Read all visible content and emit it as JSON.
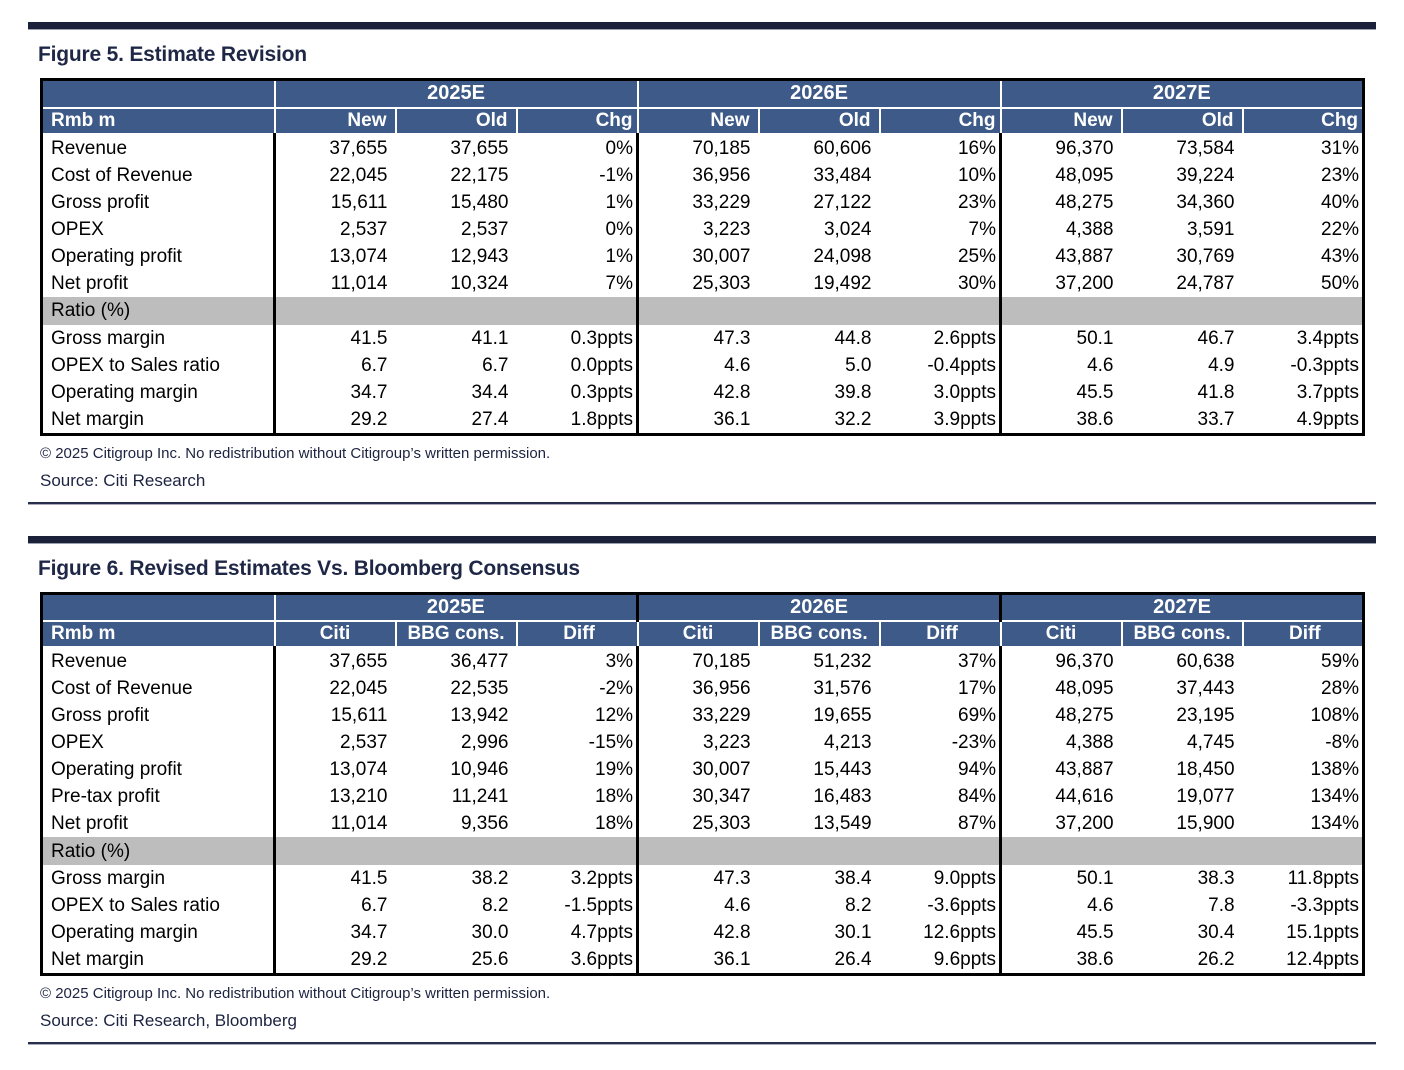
{
  "colors": {
    "header_bg": "#3d5a88",
    "band_gray": "#bdbdbd",
    "accent_navy": "#1f2746",
    "divider_bar": "#1b2139",
    "table_border": "#000000"
  },
  "figure5": {
    "title": "Figure 5. Estimate Revision",
    "row_header": "Rmb m",
    "groups": [
      "2025E",
      "2026E",
      "2027E"
    ],
    "sub_headers": [
      "New",
      "Old",
      "Chg"
    ],
    "rows": [
      {
        "label": "Revenue",
        "values": [
          "37,655",
          "37,655",
          "0%",
          "70,185",
          "60,606",
          "16%",
          "96,370",
          "73,584",
          "31%"
        ]
      },
      {
        "label": "Cost of Revenue",
        "values": [
          "22,045",
          "22,175",
          "-1%",
          "36,956",
          "33,484",
          "10%",
          "48,095",
          "39,224",
          "23%"
        ]
      },
      {
        "label": "Gross profit",
        "values": [
          "15,611",
          "15,480",
          "1%",
          "33,229",
          "27,122",
          "23%",
          "48,275",
          "34,360",
          "40%"
        ]
      },
      {
        "label": "OPEX",
        "values": [
          "2,537",
          "2,537",
          "0%",
          "3,223",
          "3,024",
          "7%",
          "4,388",
          "3,591",
          "22%"
        ]
      },
      {
        "label": "Operating profit",
        "values": [
          "13,074",
          "12,943",
          "1%",
          "30,007",
          "24,098",
          "25%",
          "43,887",
          "30,769",
          "43%"
        ]
      },
      {
        "label": "Net profit",
        "values": [
          "11,014",
          "10,324",
          "7%",
          "25,303",
          "19,492",
          "30%",
          "37,200",
          "24,787",
          "50%"
        ]
      }
    ],
    "band_label": "Ratio (%)",
    "ratio_rows": [
      {
        "label": "Gross margin",
        "values": [
          "41.5",
          "41.1",
          "0.3ppts",
          "47.3",
          "44.8",
          "2.6ppts",
          "50.1",
          "46.7",
          "3.4ppts"
        ]
      },
      {
        "label": "OPEX to Sales ratio",
        "values": [
          "6.7",
          "6.7",
          "0.0ppts",
          "4.6",
          "5.0",
          "-0.4ppts",
          "4.6",
          "4.9",
          "-0.3ppts"
        ]
      },
      {
        "label": "Operating margin",
        "values": [
          "34.7",
          "34.4",
          "0.3ppts",
          "42.8",
          "39.8",
          "3.0ppts",
          "45.5",
          "41.8",
          "3.7ppts"
        ]
      },
      {
        "label": "Net margin",
        "values": [
          "29.2",
          "27.4",
          "1.8ppts",
          "36.1",
          "32.2",
          "3.9ppts",
          "38.6",
          "33.7",
          "4.9ppts"
        ]
      }
    ],
    "copyright": "© 2025 Citigroup Inc. No redistribution without Citigroup’s written permission.",
    "source": "Source: Citi Research"
  },
  "figure6": {
    "title": "Figure 6. Revised Estimates Vs. Bloomberg Consensus",
    "row_header": "Rmb m",
    "groups": [
      "2025E",
      "2026E",
      "2027E"
    ],
    "sub_headers": [
      "Citi",
      "BBG cons.",
      "Diff"
    ],
    "rows": [
      {
        "label": "Revenue",
        "values": [
          "37,655",
          "36,477",
          "3%",
          "70,185",
          "51,232",
          "37%",
          "96,370",
          "60,638",
          "59%"
        ]
      },
      {
        "label": "Cost of Revenue",
        "values": [
          "22,045",
          "22,535",
          "-2%",
          "36,956",
          "31,576",
          "17%",
          "48,095",
          "37,443",
          "28%"
        ]
      },
      {
        "label": "Gross profit",
        "values": [
          "15,611",
          "13,942",
          "12%",
          "33,229",
          "19,655",
          "69%",
          "48,275",
          "23,195",
          "108%"
        ]
      },
      {
        "label": "OPEX",
        "values": [
          "2,537",
          "2,996",
          "-15%",
          "3,223",
          "4,213",
          "-23%",
          "4,388",
          "4,745",
          "-8%"
        ]
      },
      {
        "label": "Operating profit",
        "values": [
          "13,074",
          "10,946",
          "19%",
          "30,007",
          "15,443",
          "94%",
          "43,887",
          "18,450",
          "138%"
        ]
      },
      {
        "label": "Pre-tax profit",
        "values": [
          "13,210",
          "11,241",
          "18%",
          "30,347",
          "16,483",
          "84%",
          "44,616",
          "19,077",
          "134%"
        ]
      },
      {
        "label": "Net profit",
        "values": [
          "11,014",
          "9,356",
          "18%",
          "25,303",
          "13,549",
          "87%",
          "37,200",
          "15,900",
          "134%"
        ]
      }
    ],
    "band_label": "Ratio (%)",
    "ratio_rows": [
      {
        "label": "Gross margin",
        "values": [
          "41.5",
          "38.2",
          "3.2ppts",
          "47.3",
          "38.4",
          "9.0ppts",
          "50.1",
          "38.3",
          "11.8ppts"
        ]
      },
      {
        "label": "OPEX to Sales ratio",
        "values": [
          "6.7",
          "8.2",
          "-1.5ppts",
          "4.6",
          "8.2",
          "-3.6ppts",
          "4.6",
          "7.8",
          "-3.3ppts"
        ]
      },
      {
        "label": "Operating margin",
        "values": [
          "34.7",
          "30.0",
          "4.7ppts",
          "42.8",
          "30.1",
          "12.6ppts",
          "45.5",
          "30.4",
          "15.1ppts"
        ]
      },
      {
        "label": "Net margin",
        "values": [
          "29.2",
          "25.6",
          "3.6ppts",
          "36.1",
          "26.4",
          "9.6ppts",
          "38.6",
          "26.2",
          "12.4ppts"
        ]
      }
    ],
    "copyright": "© 2025 Citigroup Inc. No redistribution without Citigroup’s written permission.",
    "source": "Source: Citi Research, Bloomberg"
  }
}
